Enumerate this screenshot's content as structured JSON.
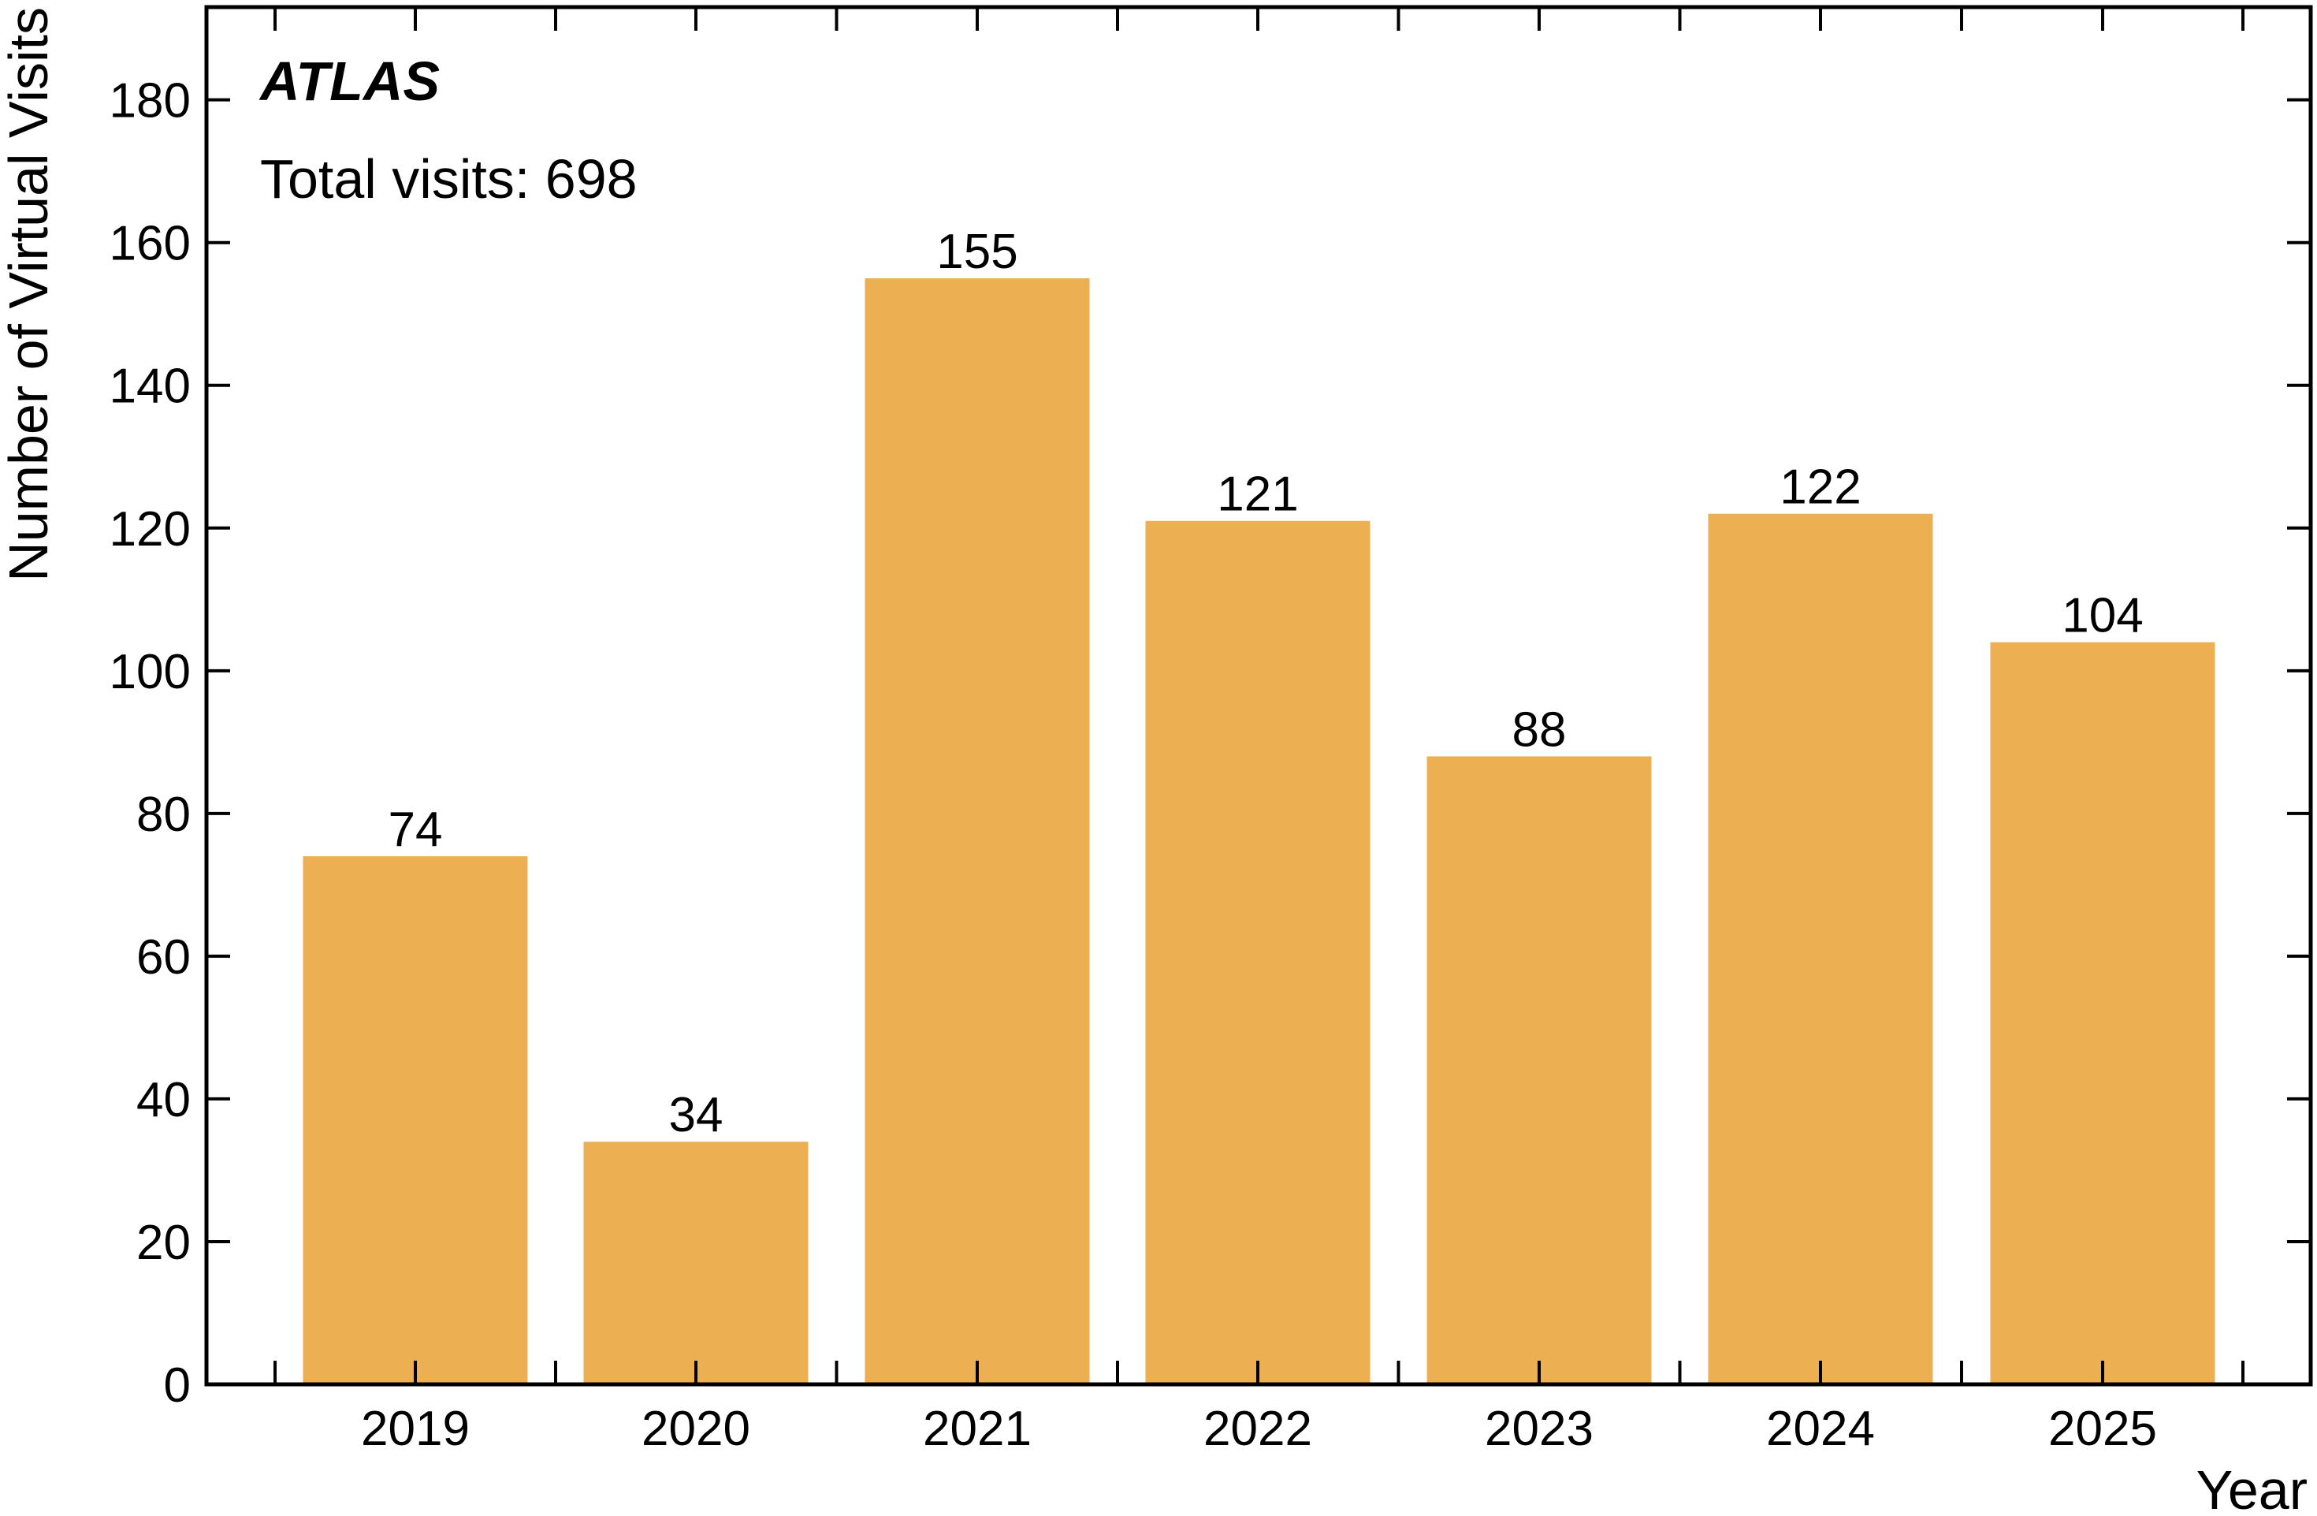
{
  "chart_data": {
    "type": "bar",
    "categories": [
      "2019",
      "2020",
      "2021",
      "2022",
      "2023",
      "2024",
      "2025"
    ],
    "values": [
      74,
      34,
      155,
      121,
      88,
      122,
      104
    ],
    "data_labels": [
      "74",
      "34",
      "155",
      "121",
      "88",
      "122",
      "104"
    ],
    "title": "",
    "experiment_label": "ATLAS",
    "annotation": "Total visits: 698",
    "xlabel": "Year",
    "ylabel": "Number of Virtual Visits",
    "ylim": [
      0,
      193
    ],
    "yticks": [
      0,
      20,
      40,
      60,
      80,
      100,
      120,
      140,
      160,
      180
    ],
    "ytick_labels": [
      "0",
      "20",
      "40",
      "60",
      "80",
      "100",
      "120",
      "140",
      "160",
      "180"
    ],
    "bar_color": "#ecb052",
    "grid": false,
    "legend": "none"
  }
}
